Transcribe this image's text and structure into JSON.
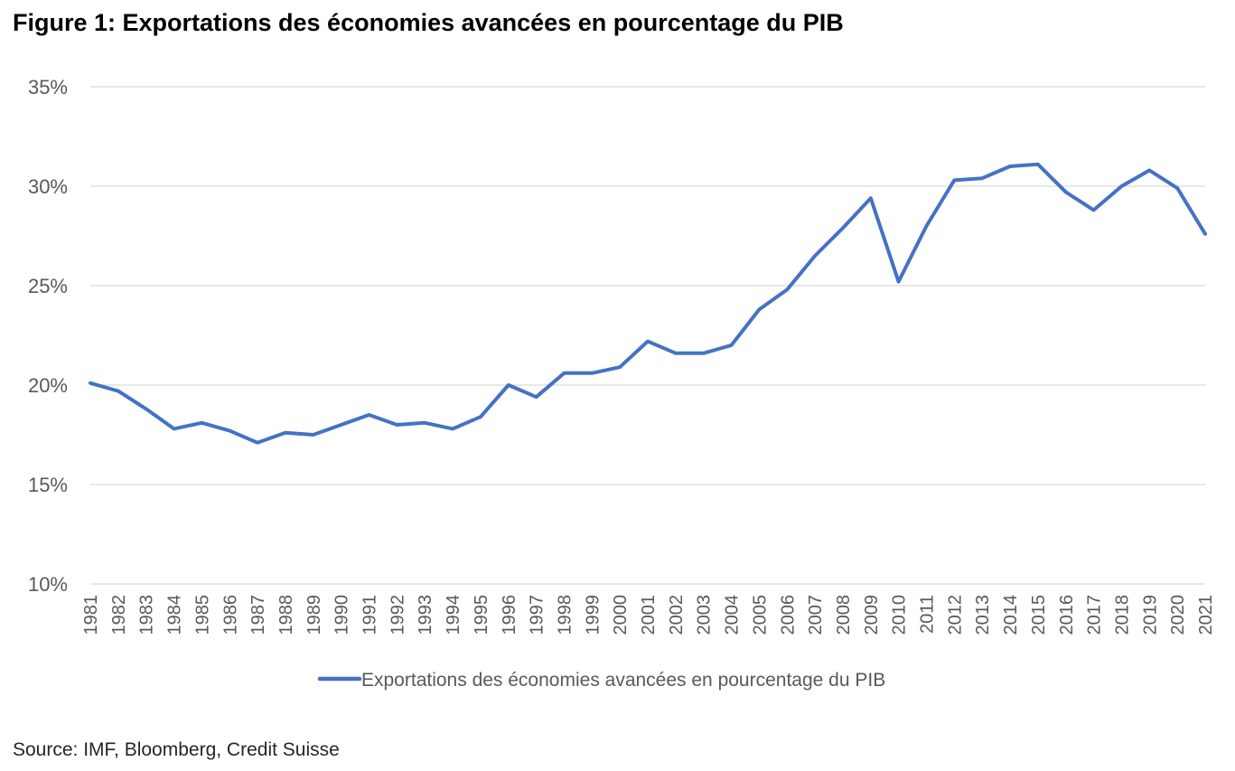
{
  "title": "Figure 1: Exportations des économies avancées en pourcentage du PIB",
  "source": "Source: IMF, Bloomberg, Credit Suisse",
  "colors": {
    "series": "#4472C4",
    "grid": "#D9D9D9",
    "axis_text": "#595959"
  },
  "chart_data": {
    "type": "line",
    "title": "Figure 1: Exportations des économies avancées en pourcentage du PIB",
    "xlabel": "",
    "ylabel": "",
    "ylim": [
      10,
      35
    ],
    "ytick_values": [
      10,
      15,
      20,
      25,
      30,
      35
    ],
    "ytick_labels": [
      "10%",
      "15%",
      "20%",
      "25%",
      "30%",
      "35%"
    ],
    "grid": "horizontal",
    "legend_position": "bottom",
    "categories": [
      "1981",
      "1982",
      "1983",
      "1984",
      "1985",
      "1986",
      "1987",
      "1988",
      "1989",
      "1990",
      "1991",
      "1992",
      "1993",
      "1994",
      "1995",
      "1996",
      "1997",
      "1998",
      "1999",
      "2000",
      "2001",
      "2002",
      "2003",
      "2004",
      "2005",
      "2006",
      "2007",
      "2008",
      "2009",
      "2010",
      "2011",
      "2012",
      "2013",
      "2014",
      "2015",
      "2016",
      "2017",
      "2018",
      "2019",
      "2020",
      "2021"
    ],
    "series": [
      {
        "name": "Exportations des économies avancées en pourcentage du PIB",
        "values": [
          20.1,
          19.7,
          18.8,
          17.8,
          18.1,
          17.7,
          17.1,
          17.6,
          17.5,
          18.0,
          18.5,
          18.0,
          18.1,
          17.8,
          18.4,
          20.0,
          19.4,
          20.6,
          20.6,
          20.9,
          22.2,
          21.6,
          21.6,
          22.0,
          23.8,
          24.8,
          26.5,
          27.9,
          29.4,
          25.2,
          28.0,
          30.3,
          30.4,
          31.0,
          31.1,
          29.7,
          28.8,
          30.0,
          30.8,
          29.9,
          27.6
        ]
      }
    ]
  }
}
